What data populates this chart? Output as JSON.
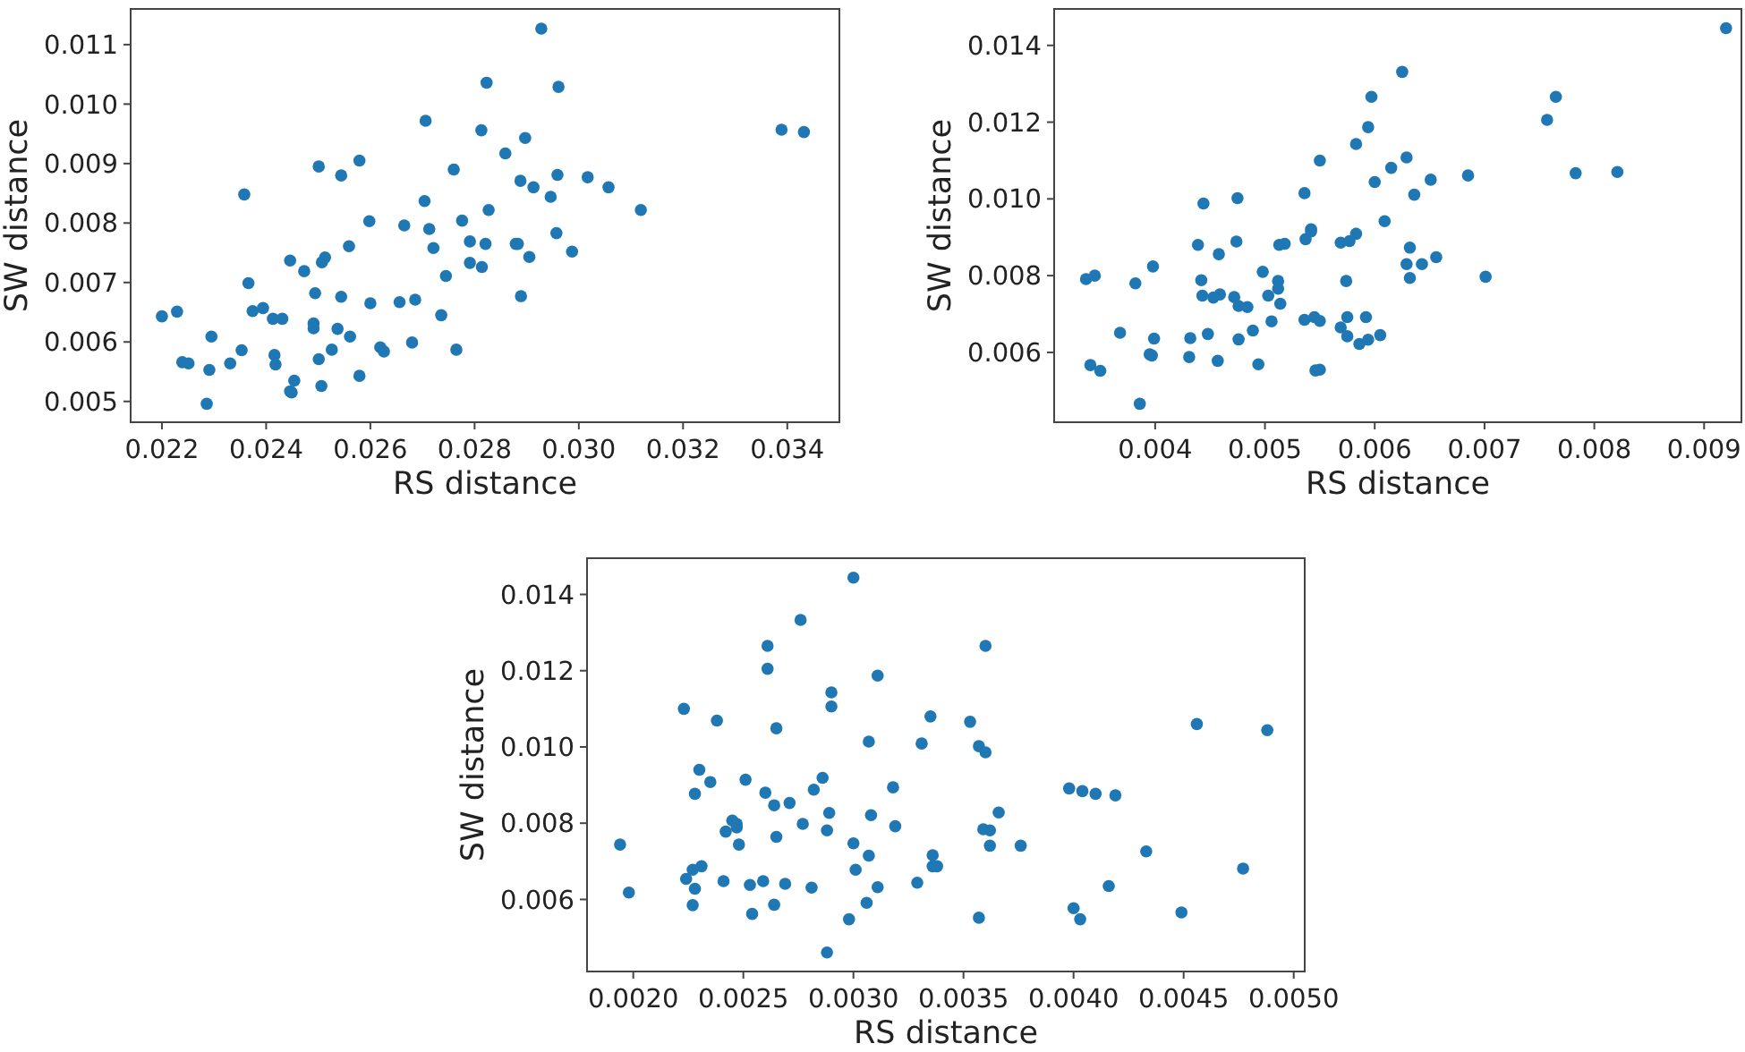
{
  "chart_data": [
    {
      "type": "scatter",
      "xlabel": "RS distance",
      "ylabel": "SW distance",
      "marker": "circle",
      "xlim": [
        0.0214,
        0.035
      ],
      "ylim": [
        0.00465,
        0.0116
      ],
      "xticks": [
        0.022,
        0.024,
        0.026,
        0.028,
        {
          "value": 0.03,
          "label": "0.030"
        },
        0.032,
        0.034
      ],
      "yticks": [
        {
          "value": 0.005,
          "label": "0.005"
        },
        {
          "value": 0.006,
          "label": "0.006"
        },
        {
          "value": 0.007,
          "label": "0.007"
        },
        {
          "value": 0.008,
          "label": "0.008"
        },
        {
          "value": 0.009,
          "label": "0.009"
        },
        {
          "value": 0.01,
          "label": "0.010"
        },
        {
          "value": 0.011,
          "label": "0.011"
        }
      ],
      "series": [
        {
          "color": "#1f77b4",
          "x": [
            0.022,
            0.02229,
            0.02239,
            0.02251,
            0.02295,
            0.02291,
            0.02286,
            0.02331,
            0.02353,
            0.02358,
            0.02366,
            0.02374,
            0.02394,
            0.02413,
            0.02431,
            0.02416,
            0.02418,
            0.02446,
            0.02473,
            0.02446,
            0.02449,
            0.02454,
            0.02494,
            0.02491,
            0.02491,
            0.02501,
            0.02501,
            0.02506,
            0.02507,
            0.02513,
            0.02526,
            0.02537,
            0.02544,
            0.02544,
            0.02559,
            0.02561,
            0.02579,
            0.02579,
            0.02598,
            0.026,
            0.02619,
            0.02626,
            0.02656,
            0.02665,
            0.02686,
            0.0268,
            0.02704,
            0.02706,
            0.02713,
            0.02721,
            0.02736,
            0.02745,
            0.0276,
            0.02765,
            0.02776,
            0.02791,
            0.02791,
            0.02813,
            0.02814,
            0.02821,
            0.02823,
            0.02827,
            0.02859,
            0.02879,
            0.02883,
            0.02888,
            0.02889,
            0.02897,
            0.02905,
            0.02913,
            0.02928,
            0.02946,
            0.02957,
            0.02959,
            0.02961,
            0.02987,
            0.03017,
            0.03057,
            0.03119,
            0.03389,
            0.03432
          ],
          "values": [
            0.00643,
            0.00651,
            0.00566,
            0.00564,
            0.00609,
            0.00553,
            0.00496,
            0.00564,
            0.00586,
            0.00848,
            0.00699,
            0.00652,
            0.00657,
            0.00639,
            0.00639,
            0.00578,
            0.00562,
            0.00737,
            0.00719,
            0.00517,
            0.00515,
            0.00535,
            0.00682,
            0.00631,
            0.00623,
            0.00895,
            0.00571,
            0.00526,
            0.00734,
            0.00742,
            0.00587,
            0.00622,
            0.00676,
            0.0088,
            0.00761,
            0.00609,
            0.00543,
            0.00905,
            0.00803,
            0.00665,
            0.00591,
            0.00584,
            0.00667,
            0.00796,
            0.00671,
            0.00599,
            0.00837,
            0.00972,
            0.0079,
            0.00758,
            0.00645,
            0.00711,
            0.0089,
            0.00587,
            0.00804,
            0.00769,
            0.00733,
            0.00956,
            0.00726,
            0.00765,
            0.01036,
            0.00822,
            0.00917,
            0.00765,
            0.00765,
            0.00871,
            0.00677,
            0.00943,
            0.00743,
            0.0086,
            0.01127,
            0.00844,
            0.00783,
            0.00881,
            0.01029,
            0.00752,
            0.00877,
            0.0086,
            0.00822,
            0.00957,
            0.00953
          ]
        }
      ]
    },
    {
      "type": "scatter",
      "xlabel": "RS distance",
      "ylabel": "SW distance",
      "marker": "circle",
      "xlim": [
        0.00308,
        0.00934
      ],
      "ylim": [
        0.00418,
        0.01495
      ],
      "xticks": [
        0.004,
        0.005,
        0.006,
        0.007,
        0.008,
        0.009
      ],
      "yticks": [
        0.006,
        0.008,
        {
          "value": 0.01,
          "label": "0.010"
        },
        0.012,
        0.014
      ],
      "series": [
        {
          "color": "#1f77b4",
          "x": [
            0.00337,
            0.00345,
            0.00341,
            0.0035,
            0.00368,
            0.00382,
            0.00386,
            0.00395,
            0.00397,
            0.00399,
            0.00398,
            0.00431,
            0.00432,
            0.00439,
            0.00442,
            0.00443,
            0.00444,
            0.00448,
            0.00453,
            0.00459,
            0.00458,
            0.00457,
            0.00472,
            0.00474,
            0.00475,
            0.00476,
            0.00476,
            0.00484,
            0.00489,
            0.00494,
            0.00498,
            0.00503,
            0.00506,
            0.00512,
            0.00512,
            0.00514,
            0.00513,
            0.00518,
            0.00536,
            0.00536,
            0.00537,
            0.00542,
            0.00542,
            0.00545,
            0.00546,
            0.0055,
            0.0055,
            0.0055,
            0.00569,
            0.00569,
            0.00574,
            0.00575,
            0.00575,
            0.00577,
            0.00583,
            0.00583,
            0.00586,
            0.00592,
            0.00594,
            0.00594,
            0.00597,
            0.006,
            0.00605,
            0.00609,
            0.00615,
            0.00625,
            0.00629,
            0.00629,
            0.00632,
            0.00632,
            0.00636,
            0.00643,
            0.00651,
            0.00656,
            0.00685,
            0.00701,
            0.00757,
            0.00765,
            0.00783,
            0.00821,
            0.0092
          ],
          "values": [
            0.00791,
            0.008,
            0.00567,
            0.00552,
            0.00651,
            0.0078,
            0.00466,
            0.00595,
            0.00592,
            0.00636,
            0.00824,
            0.00588,
            0.00637,
            0.0088,
            0.00788,
            0.00748,
            0.00988,
            0.00648,
            0.00743,
            0.00751,
            0.00856,
            0.00578,
            0.00744,
            0.00889,
            0.01002,
            0.00721,
            0.00634,
            0.00718,
            0.00657,
            0.00569,
            0.0081,
            0.00748,
            0.00681,
            0.00786,
            0.00766,
            0.00727,
            0.0088,
            0.00883,
            0.01015,
            0.00685,
            0.00895,
            0.00921,
            0.00915,
            0.00692,
            0.00553,
            0.00682,
            0.00555,
            0.011,
            0.00886,
            0.00665,
            0.00786,
            0.00692,
            0.00642,
            0.0089,
            0.00909,
            0.01143,
            0.00622,
            0.00692,
            0.00633,
            0.01187,
            0.01266,
            0.01044,
            0.00645,
            0.00942,
            0.01081,
            0.01331,
            0.01108,
            0.0083,
            0.00873,
            0.00794,
            0.01011,
            0.0083,
            0.0105,
            0.00848,
            0.01061,
            0.00797,
            0.01206,
            0.01266,
            0.01067,
            0.0107,
            0.01445
          ]
        }
      ]
    },
    {
      "type": "scatter",
      "xlabel": "RS distance",
      "ylabel": "SW distance",
      "marker": "circle",
      "xlim": [
        0.00179,
        0.00505
      ],
      "ylim": [
        0.00411,
        0.01495
      ],
      "xticks": [
        {
          "value": 0.002,
          "label": "0.0020"
        },
        {
          "value": 0.0025,
          "label": "0.0025"
        },
        {
          "value": 0.003,
          "label": "0.0030"
        },
        {
          "value": 0.0035,
          "label": "0.0035"
        },
        {
          "value": 0.004,
          "label": "0.0040"
        },
        {
          "value": 0.0045,
          "label": "0.0045"
        },
        {
          "value": 0.005,
          "label": "0.0050"
        }
      ],
      "yticks": [
        0.006,
        0.008,
        {
          "value": 0.01,
          "label": "0.010"
        },
        0.012,
        0.014
      ],
      "series": [
        {
          "color": "#1f77b4",
          "x": [
            0.00194,
            0.00198,
            0.00223,
            0.00224,
            0.00227,
            0.00227,
            0.00228,
            0.00228,
            0.0023,
            0.00231,
            0.00235,
            0.00238,
            0.00241,
            0.00242,
            0.00245,
            0.00247,
            0.00247,
            0.00248,
            0.00251,
            0.00253,
            0.00254,
            0.00259,
            0.0026,
            0.00261,
            0.00261,
            0.00264,
            0.00264,
            0.00265,
            0.00265,
            0.00269,
            0.00271,
            0.00276,
            0.00277,
            0.00281,
            0.00282,
            0.00286,
            0.00288,
            0.00288,
            0.00289,
            0.0029,
            0.0029,
            0.00298,
            0.003,
            0.003,
            0.00301,
            0.00306,
            0.00307,
            0.00307,
            0.00308,
            0.00311,
            0.00311,
            0.00318,
            0.00319,
            0.00329,
            0.00331,
            0.00335,
            0.00336,
            0.00336,
            0.00338,
            0.00353,
            0.00357,
            0.00357,
            0.00359,
            0.0036,
            0.0036,
            0.00362,
            0.00362,
            0.00366,
            0.00376,
            0.00398,
            0.004,
            0.00403,
            0.00404,
            0.0041,
            0.00416,
            0.00419,
            0.00433,
            0.00449,
            0.00456,
            0.00477,
            0.00488
          ],
          "values": [
            0.00744,
            0.00618,
            0.011,
            0.00654,
            0.00585,
            0.00678,
            0.00877,
            0.00628,
            0.0094,
            0.00687,
            0.00908,
            0.01069,
            0.00648,
            0.00778,
            0.00807,
            0.00798,
            0.00789,
            0.00744,
            0.00914,
            0.00638,
            0.00562,
            0.00648,
            0.0088,
            0.01265,
            0.01205,
            0.00847,
            0.00586,
            0.00764,
            0.01049,
            0.00641,
            0.00853,
            0.01333,
            0.00798,
            0.00631,
            0.00888,
            0.00919,
            0.00461,
            0.00781,
            0.00827,
            0.01106,
            0.01143,
            0.00548,
            0.01444,
            0.00747,
            0.00678,
            0.00591,
            0.00715,
            0.01014,
            0.00821,
            0.00632,
            0.01187,
            0.00894,
            0.00792,
            0.00644,
            0.01009,
            0.0108,
            0.00716,
            0.00687,
            0.00687,
            0.01066,
            0.01002,
            0.00552,
            0.00784,
            0.00986,
            0.01265,
            0.00781,
            0.00741,
            0.00828,
            0.00741,
            0.00891,
            0.00577,
            0.00548,
            0.00884,
            0.00877,
            0.00635,
            0.00873,
            0.00726,
            0.00566,
            0.0106,
            0.00681,
            0.01044
          ]
        }
      ]
    }
  ]
}
